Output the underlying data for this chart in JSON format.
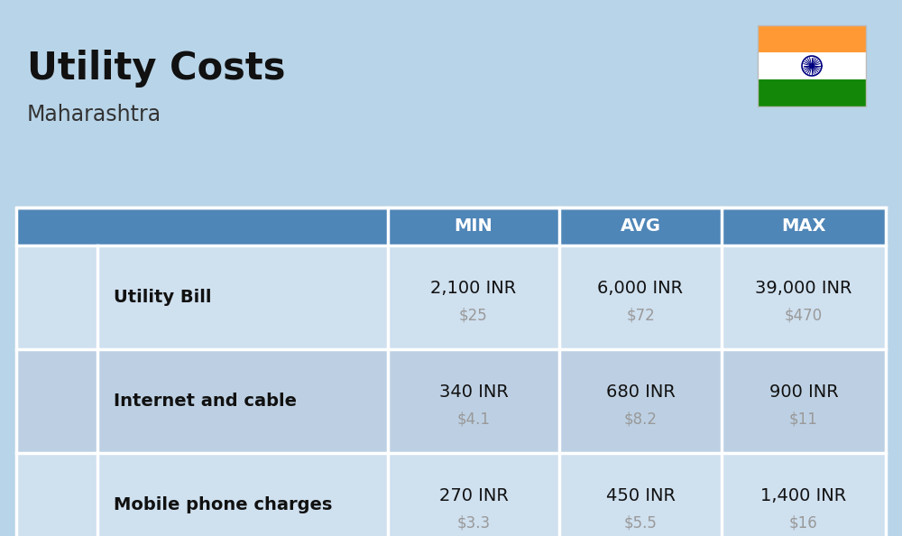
{
  "title": "Utility Costs",
  "subtitle": "Maharashtra",
  "background_color": "#b8d4e8",
  "header_bg_color": "#4f86b8",
  "header_text_color": "#ffffff",
  "row_bg_color_1": "#cfe0ef",
  "row_bg_color_2": "#bdd0e3",
  "table_border_color": "#ffffff",
  "headers": [
    "MIN",
    "AVG",
    "MAX"
  ],
  "rows": [
    {
      "label": "Utility Bill",
      "min_inr": "2,100 INR",
      "min_usd": "$25",
      "avg_inr": "6,000 INR",
      "avg_usd": "$72",
      "max_inr": "39,000 INR",
      "max_usd": "$470"
    },
    {
      "label": "Internet and cable",
      "min_inr": "340 INR",
      "min_usd": "$4.1",
      "avg_inr": "680 INR",
      "avg_usd": "$8.2",
      "max_inr": "900 INR",
      "max_usd": "$11"
    },
    {
      "label": "Mobile phone charges",
      "min_inr": "270 INR",
      "min_usd": "$3.3",
      "avg_inr": "450 INR",
      "avg_usd": "$5.5",
      "max_inr": "1,400 INR",
      "max_usd": "$16"
    }
  ],
  "flag_colors": [
    "#ff9933",
    "#ffffff",
    "#138808"
  ],
  "title_fontsize": 30,
  "subtitle_fontsize": 17,
  "header_fontsize": 14,
  "label_fontsize": 14,
  "value_fontsize": 14,
  "usd_fontsize": 12,
  "usd_color": "#999999",
  "inr_color": "#111111"
}
